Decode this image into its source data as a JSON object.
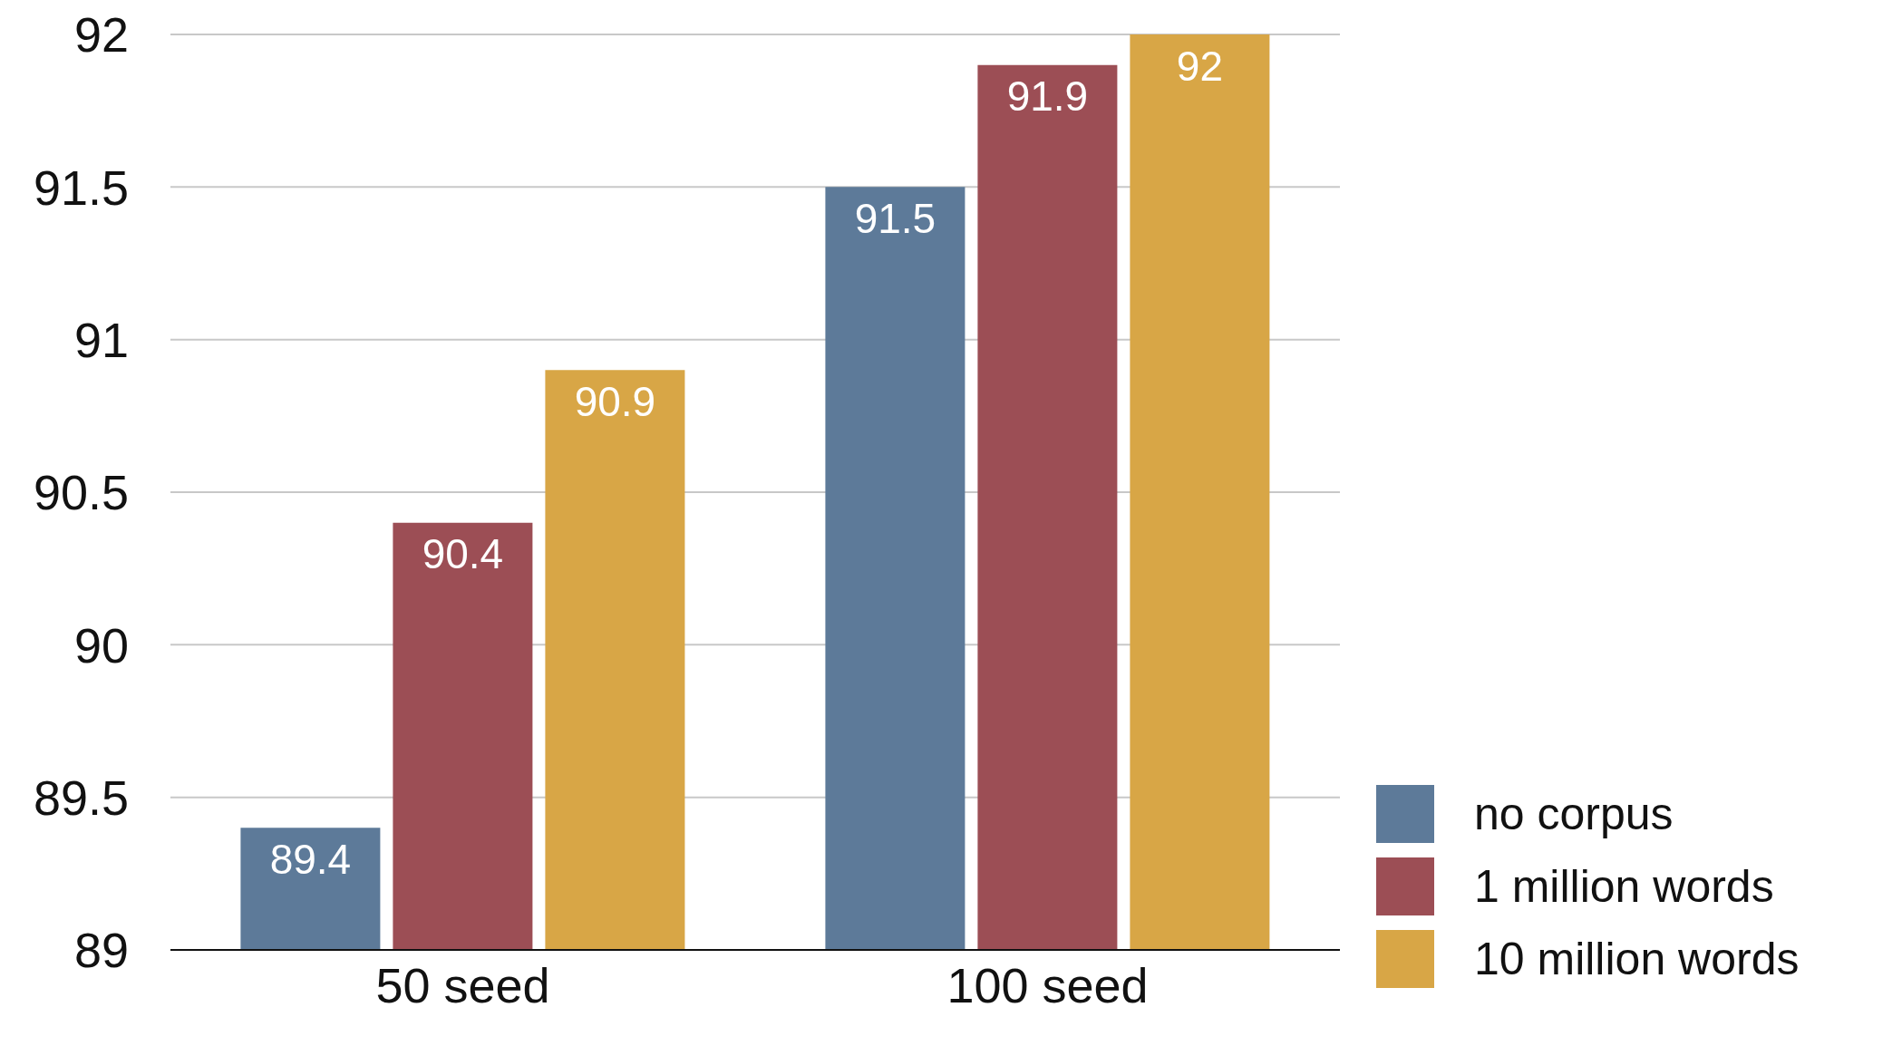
{
  "chart_data": {
    "type": "bar",
    "categories": [
      "50 seed",
      "100 seed"
    ],
    "series": [
      {
        "name": "no corpus",
        "color": "#5d7a99",
        "values": [
          89.4,
          91.5
        ]
      },
      {
        "name": "1 million words",
        "color": "#9c4e55",
        "values": [
          90.4,
          91.9
        ]
      },
      {
        "name": "10 million words",
        "color": "#d8a646",
        "values": [
          90.9,
          92
        ]
      }
    ],
    "ylim": [
      89,
      92
    ],
    "yticks": [
      89,
      89.5,
      90,
      90.5,
      91,
      91.5,
      92
    ],
    "grid": "y",
    "legend": "bottom right",
    "data_labels": true
  }
}
